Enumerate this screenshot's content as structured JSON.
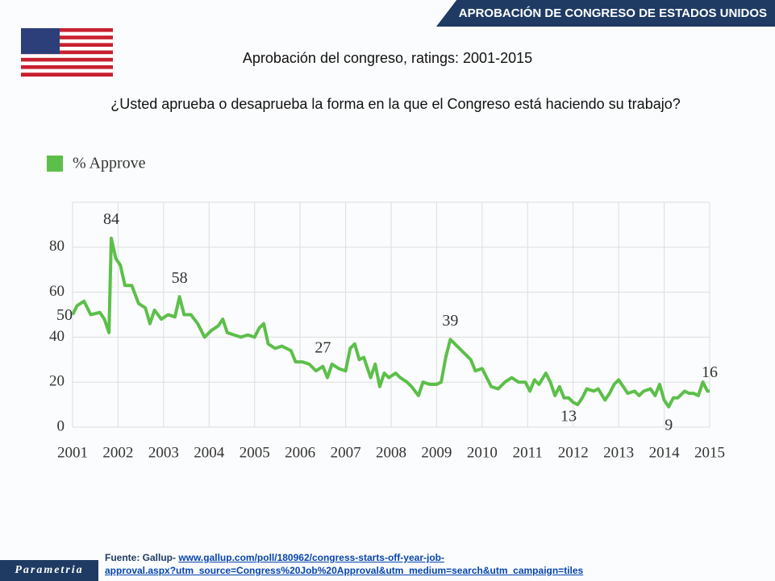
{
  "header": {
    "banner": "APROBACIÓN DE CONGRESO  DE ESTADOS UNIDOS",
    "question": "¿Usted aprueba o desaprueba la forma en la que el Congreso está haciendo su trabajo?",
    "logo": "Parametria"
  },
  "source": {
    "prefix": "Fuente: Gallup- ",
    "link_line1": "www.gallup.com/poll/180962/congress-starts-off-year-job-",
    "link_line2": "approval.aspx?utm_source=Congress%20Job%20Approval&utm_medium=search&utm_campaign=tiles"
  },
  "chart_data": {
    "type": "line",
    "title": "Aprobación del congreso, ratings: 2001-2015",
    "x": [
      2001.0,
      2001.1,
      2001.25,
      2001.4,
      2001.6,
      2001.7,
      2001.8,
      2001.85,
      2001.95,
      2002.05,
      2002.15,
      2002.3,
      2002.45,
      2002.6,
      2002.7,
      2002.8,
      2002.95,
      2003.1,
      2003.25,
      2003.35,
      2003.45,
      2003.6,
      2003.75,
      2003.9,
      2004.05,
      2004.2,
      2004.3,
      2004.4,
      2004.55,
      2004.7,
      2004.85,
      2005.0,
      2005.1,
      2005.2,
      2005.3,
      2005.45,
      2005.6,
      2005.8,
      2005.9,
      2006.05,
      2006.2,
      2006.35,
      2006.5,
      2006.6,
      2006.7,
      2006.85,
      2007.0,
      2007.1,
      2007.2,
      2007.3,
      2007.4,
      2007.55,
      2007.65,
      2007.75,
      2007.85,
      2007.95,
      2008.1,
      2008.2,
      2008.35,
      2008.45,
      2008.6,
      2008.7,
      2008.85,
      2009.0,
      2009.1,
      2009.2,
      2009.3,
      2009.45,
      2009.6,
      2009.75,
      2009.85,
      2010.0,
      2010.1,
      2010.2,
      2010.35,
      2010.5,
      2010.65,
      2010.8,
      2010.95,
      2011.05,
      2011.15,
      2011.25,
      2011.4,
      2011.5,
      2011.6,
      2011.7,
      2011.8,
      2011.9,
      2012.0,
      2012.1,
      2012.2,
      2012.3,
      2012.45,
      2012.55,
      2012.7,
      2012.8,
      2012.9,
      2013.0,
      2013.1,
      2013.2,
      2013.35,
      2013.45,
      2013.55,
      2013.7,
      2013.8,
      2013.9,
      2014.0,
      2014.1,
      2014.2,
      2014.3,
      2014.45,
      2014.55,
      2014.65,
      2014.75,
      2014.85,
      2014.95,
      2015.0
    ],
    "series": [
      {
        "name": "% Approve",
        "color": "#5cbf4a",
        "values": [
          50,
          54,
          56,
          50,
          51,
          48,
          42,
          84,
          75,
          72,
          63,
          63,
          55,
          53,
          46,
          52,
          48,
          50,
          49,
          58,
          50,
          50,
          46,
          40,
          43,
          45,
          48,
          42,
          41,
          40,
          41,
          40,
          44,
          46,
          37,
          35,
          36,
          34,
          29,
          29,
          28,
          25,
          27,
          22,
          28,
          26,
          25,
          35,
          37,
          30,
          31,
          22,
          28,
          18,
          24,
          22,
          24,
          22,
          20,
          18,
          14,
          20,
          19,
          19,
          20,
          31,
          39,
          36,
          33,
          30,
          25,
          26,
          22,
          18,
          17,
          20,
          22,
          20,
          20,
          16,
          21,
          19,
          24,
          20,
          14,
          18,
          13,
          13,
          11,
          10,
          13,
          17,
          16,
          17,
          12,
          15,
          19,
          21,
          18,
          15,
          16,
          14,
          16,
          17,
          14,
          19,
          12,
          9,
          13,
          13,
          16,
          15,
          15,
          14,
          20,
          16,
          16
        ]
      }
    ],
    "annotations": [
      {
        "label": "50",
        "x": 2001.0,
        "y": 50
      },
      {
        "label": "84",
        "x": 2001.85,
        "y": 84
      },
      {
        "label": "58",
        "x": 2003.35,
        "y": 58
      },
      {
        "label": "27",
        "x": 2006.5,
        "y": 27
      },
      {
        "label": "39",
        "x": 2009.3,
        "y": 39
      },
      {
        "label": "13",
        "x": 2011.9,
        "y": 13
      },
      {
        "label": "9",
        "x": 2014.1,
        "y": 9
      },
      {
        "label": "16",
        "x": 2015.0,
        "y": 16
      }
    ],
    "xlim": [
      2001,
      2015
    ],
    "xticks": [
      2001,
      2002,
      2003,
      2004,
      2005,
      2006,
      2007,
      2008,
      2009,
      2010,
      2011,
      2012,
      2013,
      2014,
      2015
    ],
    "ylim": [
      0,
      100
    ],
    "yticks": [
      0,
      20,
      40,
      60,
      80
    ],
    "grid": true,
    "legend": "top-left"
  }
}
